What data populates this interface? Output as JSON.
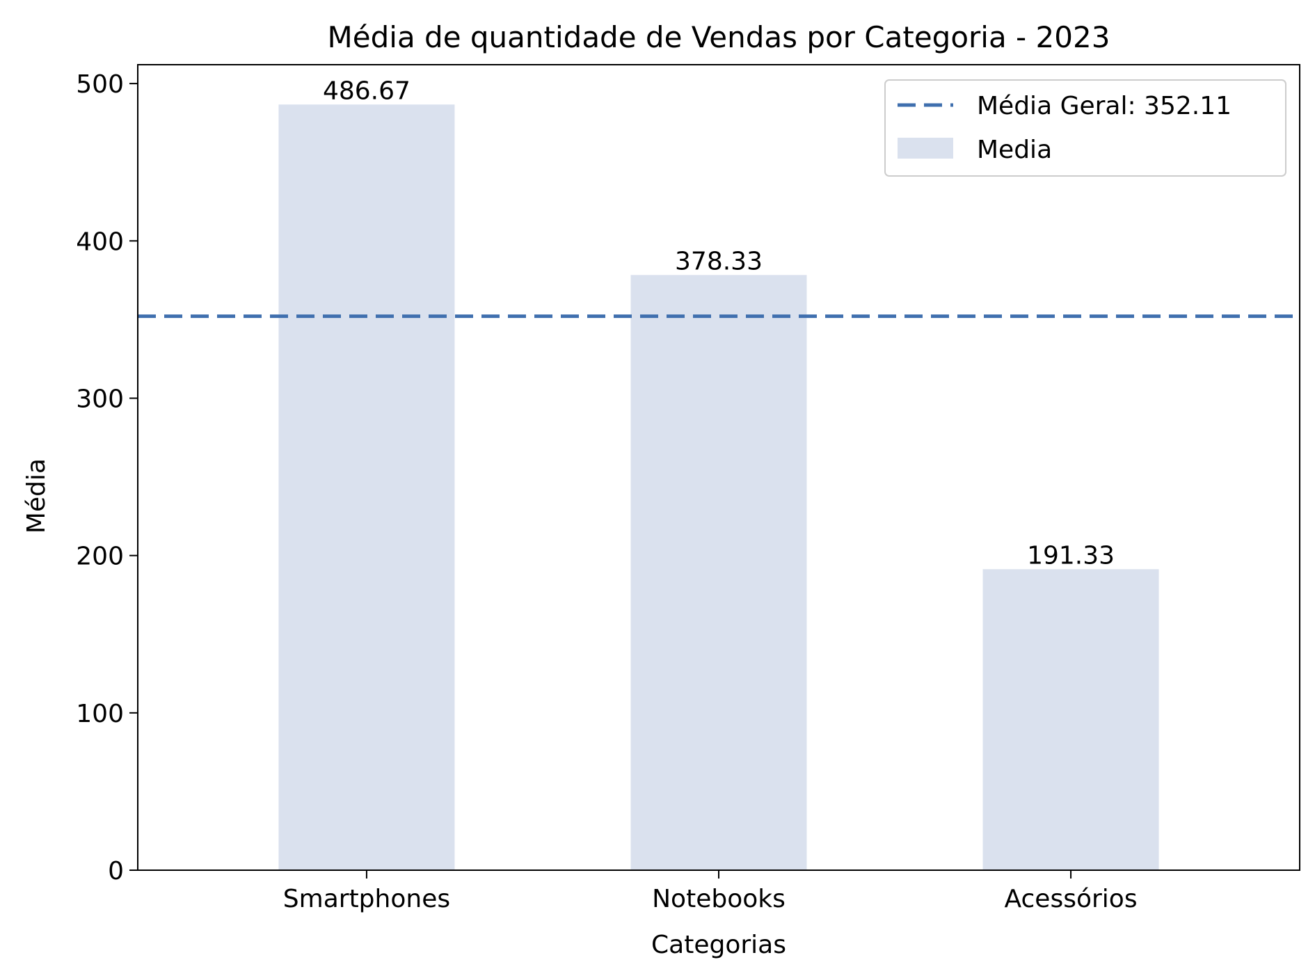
{
  "chart_data": {
    "type": "bar",
    "title": "Média de quantidade de Vendas por Categoria - 2023",
    "xlabel": "Categorias",
    "ylabel": "Média",
    "categories": [
      "Smartphones",
      "Notebooks",
      "Acessórios"
    ],
    "series": [
      {
        "name": "Media",
        "values": [
          486.67,
          378.33,
          191.33
        ]
      }
    ],
    "data_labels": [
      "486.67",
      "378.33",
      "191.33"
    ],
    "reference_line": {
      "label": "Média Geral: 352.11",
      "value": 352.11,
      "style": "dashed"
    },
    "ylim": [
      0,
      512
    ],
    "yticks": [
      0,
      100,
      200,
      300,
      400,
      500
    ],
    "grid": false,
    "legend_position": "top-right",
    "colors": {
      "bar": "#dae1ee",
      "reference_line": "#3f6fae"
    }
  }
}
